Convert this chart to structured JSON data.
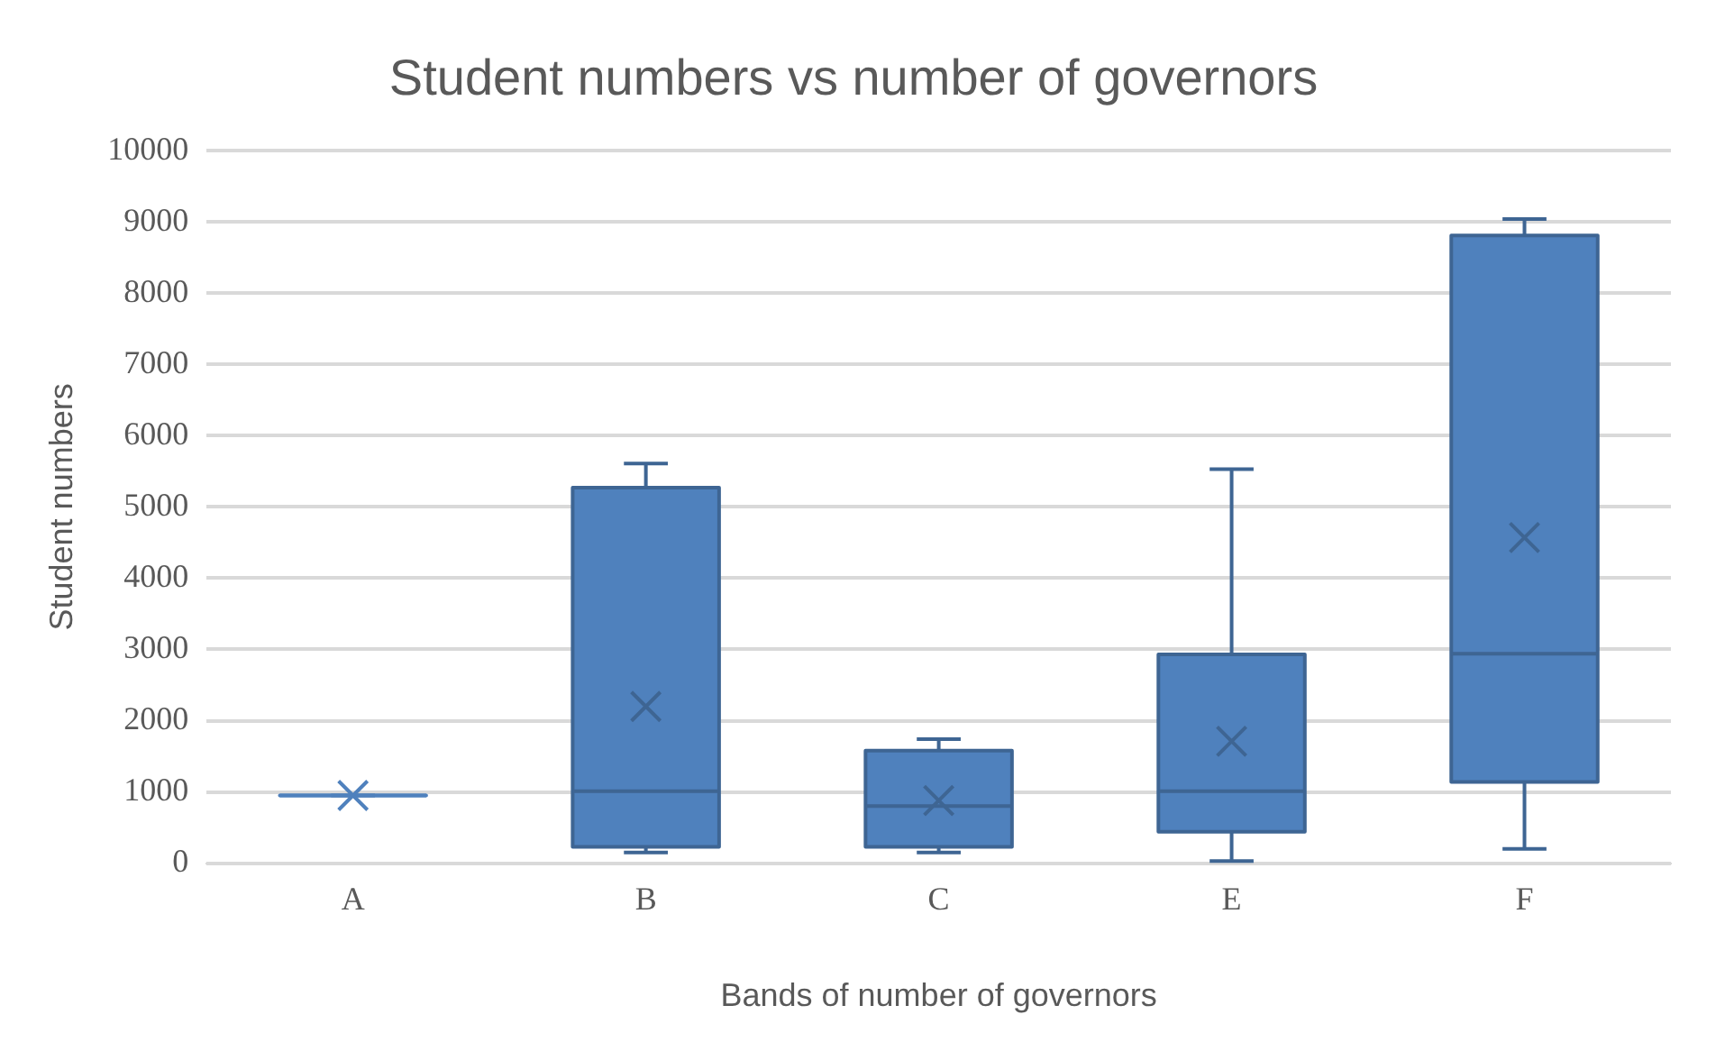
{
  "chart_data": {
    "type": "box",
    "title": "Student numbers vs number of governors",
    "xlabel": "Bands of number of governors",
    "ylabel": "Student numbers",
    "categories": [
      "A",
      "B",
      "C",
      "E",
      "F"
    ],
    "color": "#4f81bd",
    "boxes": [
      {
        "low": 950,
        "q1": 950,
        "median": 950,
        "q3": 950,
        "high": 950,
        "mean": 950
      },
      {
        "low": 150,
        "q1": 230,
        "median": 1010,
        "q3": 5270,
        "high": 5610,
        "mean": 2200
      },
      {
        "low": 150,
        "q1": 230,
        "median": 800,
        "q3": 1580,
        "high": 1740,
        "mean": 880
      },
      {
        "low": 30,
        "q1": 440,
        "median": 1010,
        "q3": 2930,
        "high": 5530,
        "mean": 1710
      },
      {
        "low": 200,
        "q1": 1140,
        "median": 2940,
        "q3": 8810,
        "high": 9040,
        "mean": 4570
      }
    ],
    "ylim": [
      0,
      10000
    ],
    "yticks": [
      0,
      1000,
      2000,
      3000,
      4000,
      5000,
      6000,
      7000,
      8000,
      9000,
      10000
    ],
    "grid": "y"
  }
}
